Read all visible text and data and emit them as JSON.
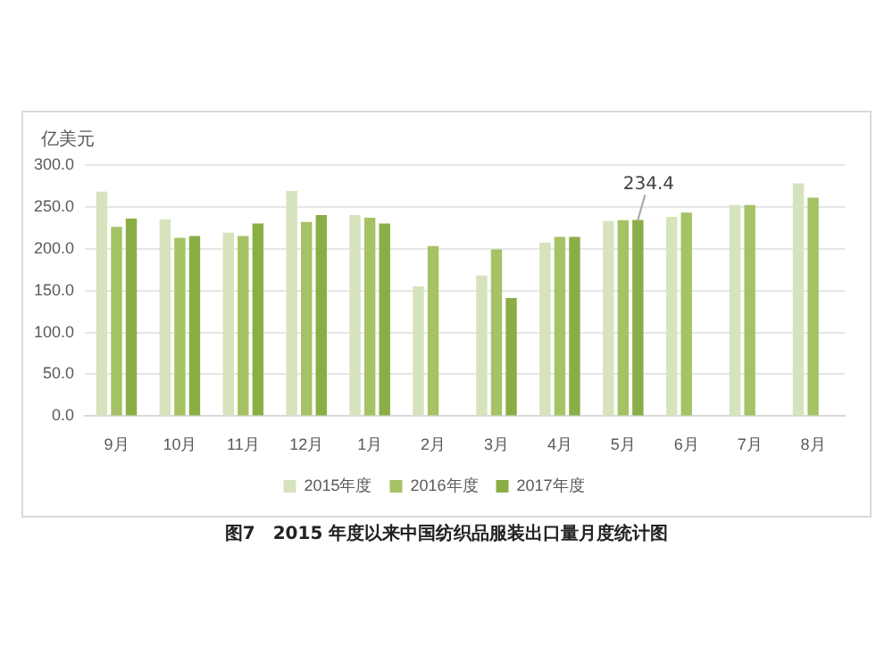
{
  "chart_data": {
    "type": "bar",
    "title": "图7　2015 年度以来中国纺织品服装出口量月度统计图",
    "ylabel": "亿美元",
    "categories": [
      "9月",
      "10月",
      "11月",
      "12月",
      "1月",
      "2月",
      "3月",
      "4月",
      "5月",
      "6月",
      "7月",
      "8月"
    ],
    "series": [
      {
        "name": "2015年度",
        "color": "#d6e3bc",
        "values": [
          268,
          235,
          219,
          269,
          240,
          155,
          168,
          207,
          233,
          238,
          252,
          278
        ]
      },
      {
        "name": "2016年度",
        "color": "#a5c265",
        "values": [
          226,
          213,
          215,
          232,
          237,
          203,
          199,
          214,
          234,
          243,
          252,
          261
        ]
      },
      {
        "name": "2017年度",
        "color": "#8aae45",
        "values": [
          236,
          215,
          230,
          240,
          230,
          null,
          141,
          214,
          234.4,
          null,
          null,
          null
        ],
        "value_labels": [
          null,
          null,
          null,
          null,
          null,
          null,
          null,
          null,
          "234.4",
          null,
          null,
          null
        ]
      }
    ],
    "ylim": [
      0,
      300
    ],
    "yticks": [
      {
        "value": 0,
        "label": "0.0"
      },
      {
        "value": 50,
        "label": "50.0"
      },
      {
        "value": 100,
        "label": "100.0"
      },
      {
        "value": 150,
        "label": "150.0"
      },
      {
        "value": 200,
        "label": "200.0"
      },
      {
        "value": 250,
        "label": "250.0"
      },
      {
        "value": 300,
        "label": "300.0"
      }
    ],
    "grid": "y",
    "legend": "bottom"
  }
}
